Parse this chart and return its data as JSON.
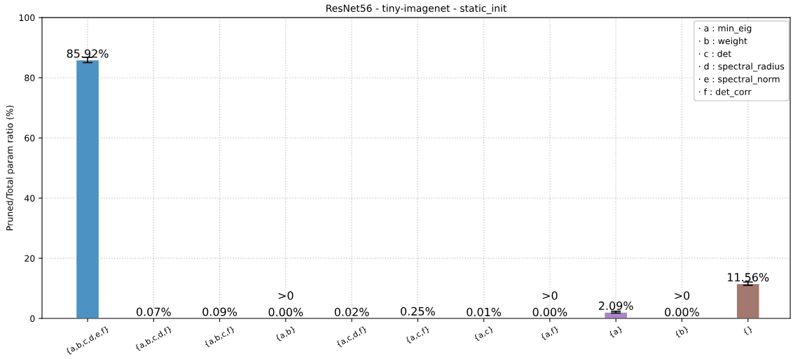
{
  "chart_data": {
    "type": "bar",
    "title": "ResNet56 - tiny-imagenet - static_init",
    "ylabel": "Pruned/Total param ratio (%)",
    "categories": [
      "{a,b,c,d,e,f}",
      "{a,b,c,d,f}",
      "{a,b,c,f}",
      "{a,b}",
      "{a,c,d,f}",
      "{a,c,f}",
      "{a,c}",
      "{a,f}",
      "{a}",
      "{b}",
      "{}"
    ],
    "values": [
      85.92,
      0.07,
      0.09,
      0.0,
      0.02,
      0.25,
      0.01,
      0.0,
      2.09,
      0.0,
      11.56
    ],
    "colors": [
      "#4c92c3",
      "#ffa656",
      "#56b356",
      null,
      "#dc5f60",
      "#56b356",
      "#e992ce",
      null,
      "#a985ca",
      null,
      "#a3786f"
    ],
    "errors": [
      0.9,
      null,
      null,
      null,
      null,
      null,
      null,
      null,
      0.3,
      null,
      0.55
    ],
    "value_labels": [
      "85.92%",
      "0.07%",
      "0.09%",
      "0.00%",
      "0.02%",
      "0.25%",
      "0.01%",
      "0.00%",
      "2.09%",
      "0.00%",
      "11.56%"
    ],
    "ylim": [
      0,
      100
    ],
    "yticks": [
      0,
      20,
      40,
      60,
      80,
      100
    ],
    "grid": true,
    "annotations": [
      "· a : min_eig",
      "· b : weight",
      "· c : det",
      "· d : spectral_radius",
      "· e : spectral_norm",
      "· f : det_corr",
      {
        "text": ">0",
        "x": "{a,b}",
        "y": 0.0
      },
      {
        "text": ">0",
        "x": "{a,f}",
        "y": 0.0
      },
      {
        "text": ">0",
        "x": "{b}",
        "y": 0.0
      }
    ]
  }
}
